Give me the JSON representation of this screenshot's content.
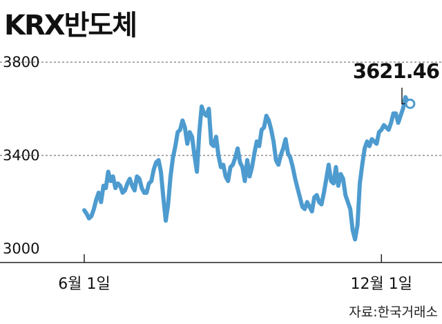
{
  "title": "KRX반도체",
  "source": "자료:한국거래소",
  "colors": {
    "line": "#4d9bcf",
    "text": "#111111",
    "grid": "#555555",
    "axis": "#222222"
  },
  "chart_data": {
    "type": "line",
    "title": "KRX반도체",
    "xlabel": "",
    "ylabel": "",
    "ylim": [
      3000,
      3800
    ],
    "yticks": [
      "3800",
      "3400",
      "3000"
    ],
    "ytick_values": [
      3800,
      3400,
      3000
    ],
    "xticks": [
      "6월 1일",
      "12월 1일"
    ],
    "xtick_index": [
      0,
      124
    ],
    "grid": "dashed horizontal at 3800 and 3400",
    "last_value_label": "3621.46",
    "series": [
      {
        "values": [
          3165,
          3150,
          3130,
          3140,
          3170,
          3210,
          3240,
          3200,
          3270,
          3260,
          3330,
          3290,
          3310,
          3260,
          3280,
          3270,
          3240,
          3250,
          3280,
          3300,
          3270,
          3250,
          3310,
          3300,
          3260,
          3240,
          3240,
          3280,
          3290,
          3340,
          3370,
          3380,
          3330,
          3220,
          3120,
          3190,
          3310,
          3390,
          3440,
          3500,
          3510,
          3550,
          3520,
          3450,
          3500,
          3480,
          3400,
          3330,
          3500,
          3610,
          3580,
          3570,
          3600,
          3450,
          3440,
          3480,
          3400,
          3350,
          3360,
          3310,
          3290,
          3350,
          3360,
          3390,
          3430,
          3370,
          3350,
          3290,
          3380,
          3310,
          3350,
          3410,
          3460,
          3440,
          3510,
          3520,
          3570,
          3550,
          3510,
          3460,
          3380,
          3360,
          3400,
          3430,
          3470,
          3410,
          3390,
          3350,
          3300,
          3260,
          3220,
          3180,
          3170,
          3200,
          3180,
          3160,
          3220,
          3230,
          3200,
          3190,
          3240,
          3300,
          3360,
          3290,
          3280,
          3350,
          3270,
          3320,
          3300,
          3230,
          3200,
          3170,
          3080,
          3040,
          3100,
          3280,
          3360,
          3430,
          3460,
          3440,
          3470,
          3460,
          3450,
          3500,
          3510,
          3530,
          3520,
          3510,
          3540,
          3580,
          3580,
          3540,
          3570,
          3600,
          3650,
          3630,
          3621.46
        ]
      }
    ]
  }
}
